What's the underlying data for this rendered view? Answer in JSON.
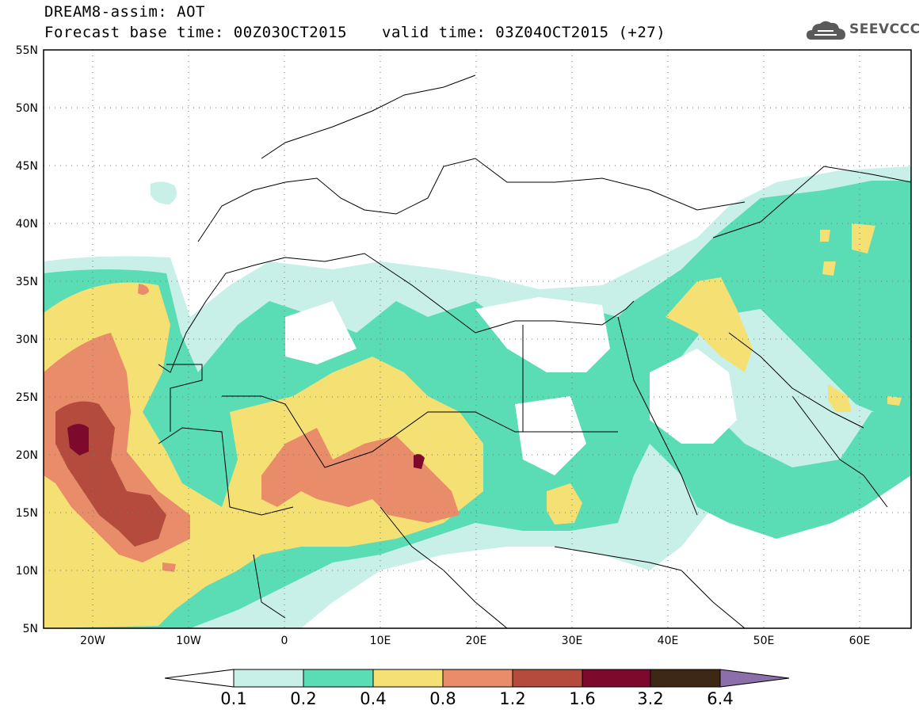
{
  "title": {
    "line1": "DREAM8-assim: AOT",
    "base_time": "Forecast base time: 00Z03OCT2015",
    "valid_time": "valid time: 03Z04OCT2015 (+27)"
  },
  "logo": {
    "text": "SEEVCCC",
    "icon": "cloud-icon"
  },
  "axes": {
    "lat_ticks": [
      "55N",
      "50N",
      "45N",
      "40N",
      "35N",
      "30N",
      "25N",
      "20N",
      "15N",
      "10N",
      "5N"
    ],
    "lon_ticks": [
      "20W",
      "10W",
      "0",
      "10E",
      "20E",
      "30E",
      "40E",
      "50E",
      "60E"
    ]
  },
  "legend": {
    "colors": [
      "#c8f0e8",
      "#5adcb4",
      "#f5e173",
      "#e98c69",
      "#b44b3c",
      "#7d0a2d",
      "#3c2814",
      "#8c6eaa"
    ],
    "labels": [
      "0.1",
      "0.2",
      "0.4",
      "0.8",
      "1.2",
      "1.6",
      "3.2",
      "6.4"
    ]
  },
  "map": {
    "region": "North Africa, Middle East and Europe",
    "lon_range": [
      -25,
      65
    ],
    "lat_range": [
      5,
      55
    ],
    "variable": "AOT"
  }
}
